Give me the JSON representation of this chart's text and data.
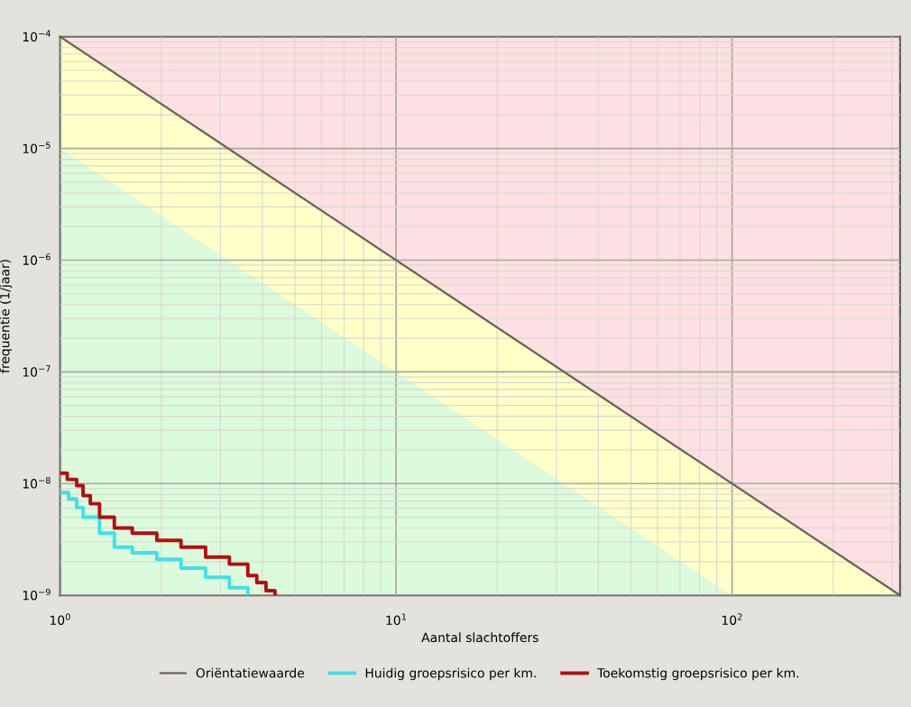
{
  "chart_data": {
    "type": "step",
    "xlabel": "Aantal slachtoffers",
    "ylabel": "frequentie (1/jaar)",
    "log": "xy",
    "xlim": [
      1,
      316.2
    ],
    "ylim": [
      1e-09,
      0.0001
    ],
    "xticks": [
      {
        "value": 1,
        "label": "10$^{0}$"
      },
      {
        "value": 10,
        "label": "10$^{1}$"
      },
      {
        "value": 100,
        "label": "10$^{2}$"
      }
    ],
    "yticks": [
      {
        "value": 1e-09,
        "label": "10$^{−9}$"
      },
      {
        "value": 1e-08,
        "label": "10$^{−8}$"
      },
      {
        "value": 1e-07,
        "label": "10$^{−7}$"
      },
      {
        "value": 1e-06,
        "label": "10$^{−6}$"
      },
      {
        "value": 1e-05,
        "label": "10$^{−5}$"
      },
      {
        "value": 0.0001,
        "label": "10$^{−4}$"
      }
    ],
    "grid": true,
    "legend": "bottom",
    "series": [
      {
        "type": "area",
        "color": "#dcfadc",
        "x": [
          1,
          100
        ],
        "values": [
          1e-05,
          1e-09
        ]
      },
      {
        "type": "line",
        "name": "Oriëntatiewaarde",
        "color": "#6b6450",
        "x": [
          1,
          316.2
        ],
        "values": [
          0.0001,
          1e-09
        ]
      },
      {
        "name": "Huidig groepsrisico per km.",
        "color": "#40e0e8",
        "x": [
          1,
          1.06,
          1.12,
          1.17,
          1.31,
          1.45,
          1.64,
          1.94,
          2.29,
          2.71,
          3.19,
          3.62
        ],
        "values": [
          8.3e-09,
          7.3e-09,
          6.1e-09,
          5e-09,
          3.6e-09,
          2.7e-09,
          2.4e-09,
          2.1e-09,
          1.75e-09,
          1.45e-09,
          1.17e-09,
          1e-09
        ]
      },
      {
        "name": "Toekomstig groepsrisico per km.",
        "color": "#b01010",
        "x": [
          1,
          1.05,
          1.12,
          1.17,
          1.23,
          1.31,
          1.45,
          1.64,
          1.94,
          2.29,
          2.71,
          3.19,
          3.62,
          3.85,
          4.1,
          4.36
        ],
        "values": [
          1.24e-08,
          1.09e-08,
          9.6e-09,
          7.8e-09,
          6.6e-09,
          5e-09,
          4e-09,
          3.6e-09,
          3.1e-09,
          2.7e-09,
          2.2e-09,
          1.9e-09,
          1.5e-09,
          1.3e-09,
          1.1e-09,
          1e-09
        ]
      }
    ]
  }
}
